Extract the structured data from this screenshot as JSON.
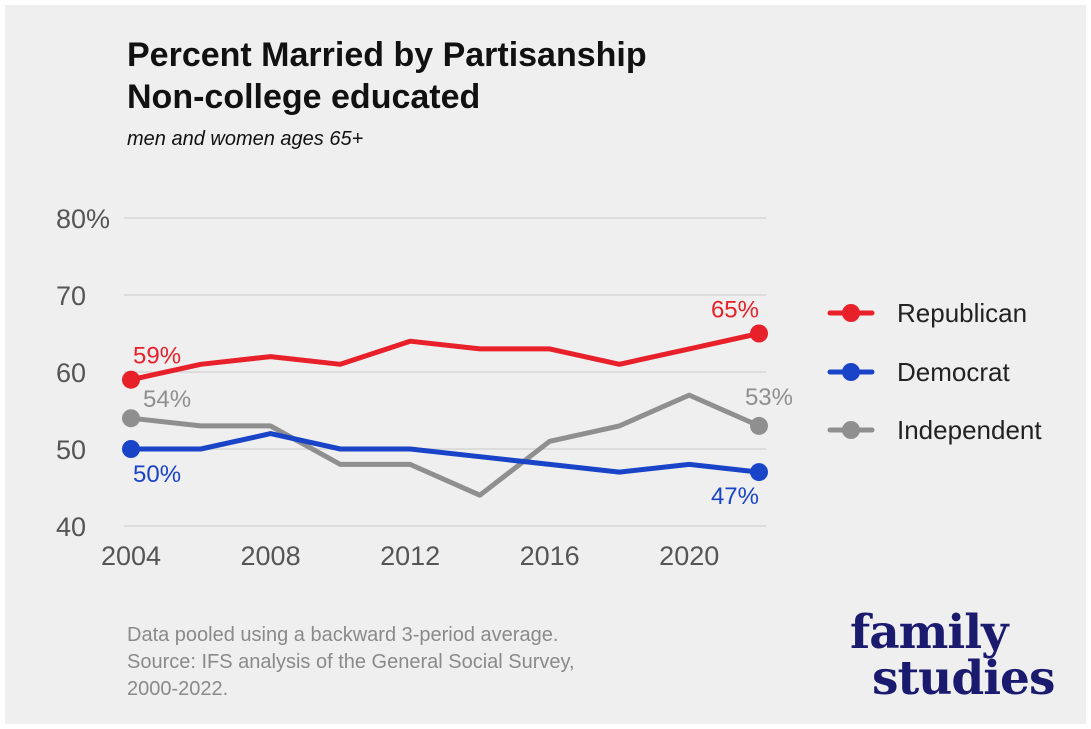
{
  "header": {
    "title_line1": "Percent Married by Partisanship",
    "title_line2": "Non-college educated",
    "subtitle": "men and women ages 65+"
  },
  "footer": {
    "note_line1": "Data pooled using a backward 3-period average.",
    "note_line2": "Source: IFS analysis of the General Social Survey,",
    "note_line3": "2000-2022."
  },
  "logo": {
    "line1": "family",
    "line2": "studies"
  },
  "chart_data": {
    "type": "line",
    "title": "Percent Married by Partisanship Non-college educated",
    "subtitle": "men and women ages 65+",
    "xlabel": "",
    "ylabel": "",
    "x": [
      2004,
      2006,
      2008,
      2010,
      2012,
      2014,
      2016,
      2018,
      2020,
      2022
    ],
    "xlim": [
      2004,
      2022
    ],
    "ylim": [
      40,
      80
    ],
    "x_ticks": [
      2004,
      2008,
      2012,
      2016,
      2020
    ],
    "x_tick_labels": [
      "2004",
      "2008",
      "2012",
      "2016",
      "2020"
    ],
    "y_ticks": [
      40,
      50,
      60,
      70,
      80
    ],
    "y_tick_labels": [
      "40",
      "50",
      "60",
      "70",
      "80%"
    ],
    "grid": true,
    "legend_position": "right",
    "series": [
      {
        "name": "Republican",
        "color": "#e8202a",
        "values": [
          59,
          61,
          62,
          61,
          64,
          63,
          63,
          61,
          63,
          65
        ],
        "start_label": "59%",
        "end_label": "65%"
      },
      {
        "name": "Democrat",
        "color": "#1a44c8",
        "values": [
          50,
          50,
          52,
          50,
          50,
          49,
          48,
          47,
          48,
          47
        ],
        "start_label": "50%",
        "end_label": "47%"
      },
      {
        "name": "Independent",
        "color": "#8f8f8f",
        "values": [
          54,
          53,
          53,
          48,
          48,
          44,
          51,
          53,
          57,
          53
        ],
        "start_label": "54%",
        "end_label": "53%"
      }
    ]
  }
}
